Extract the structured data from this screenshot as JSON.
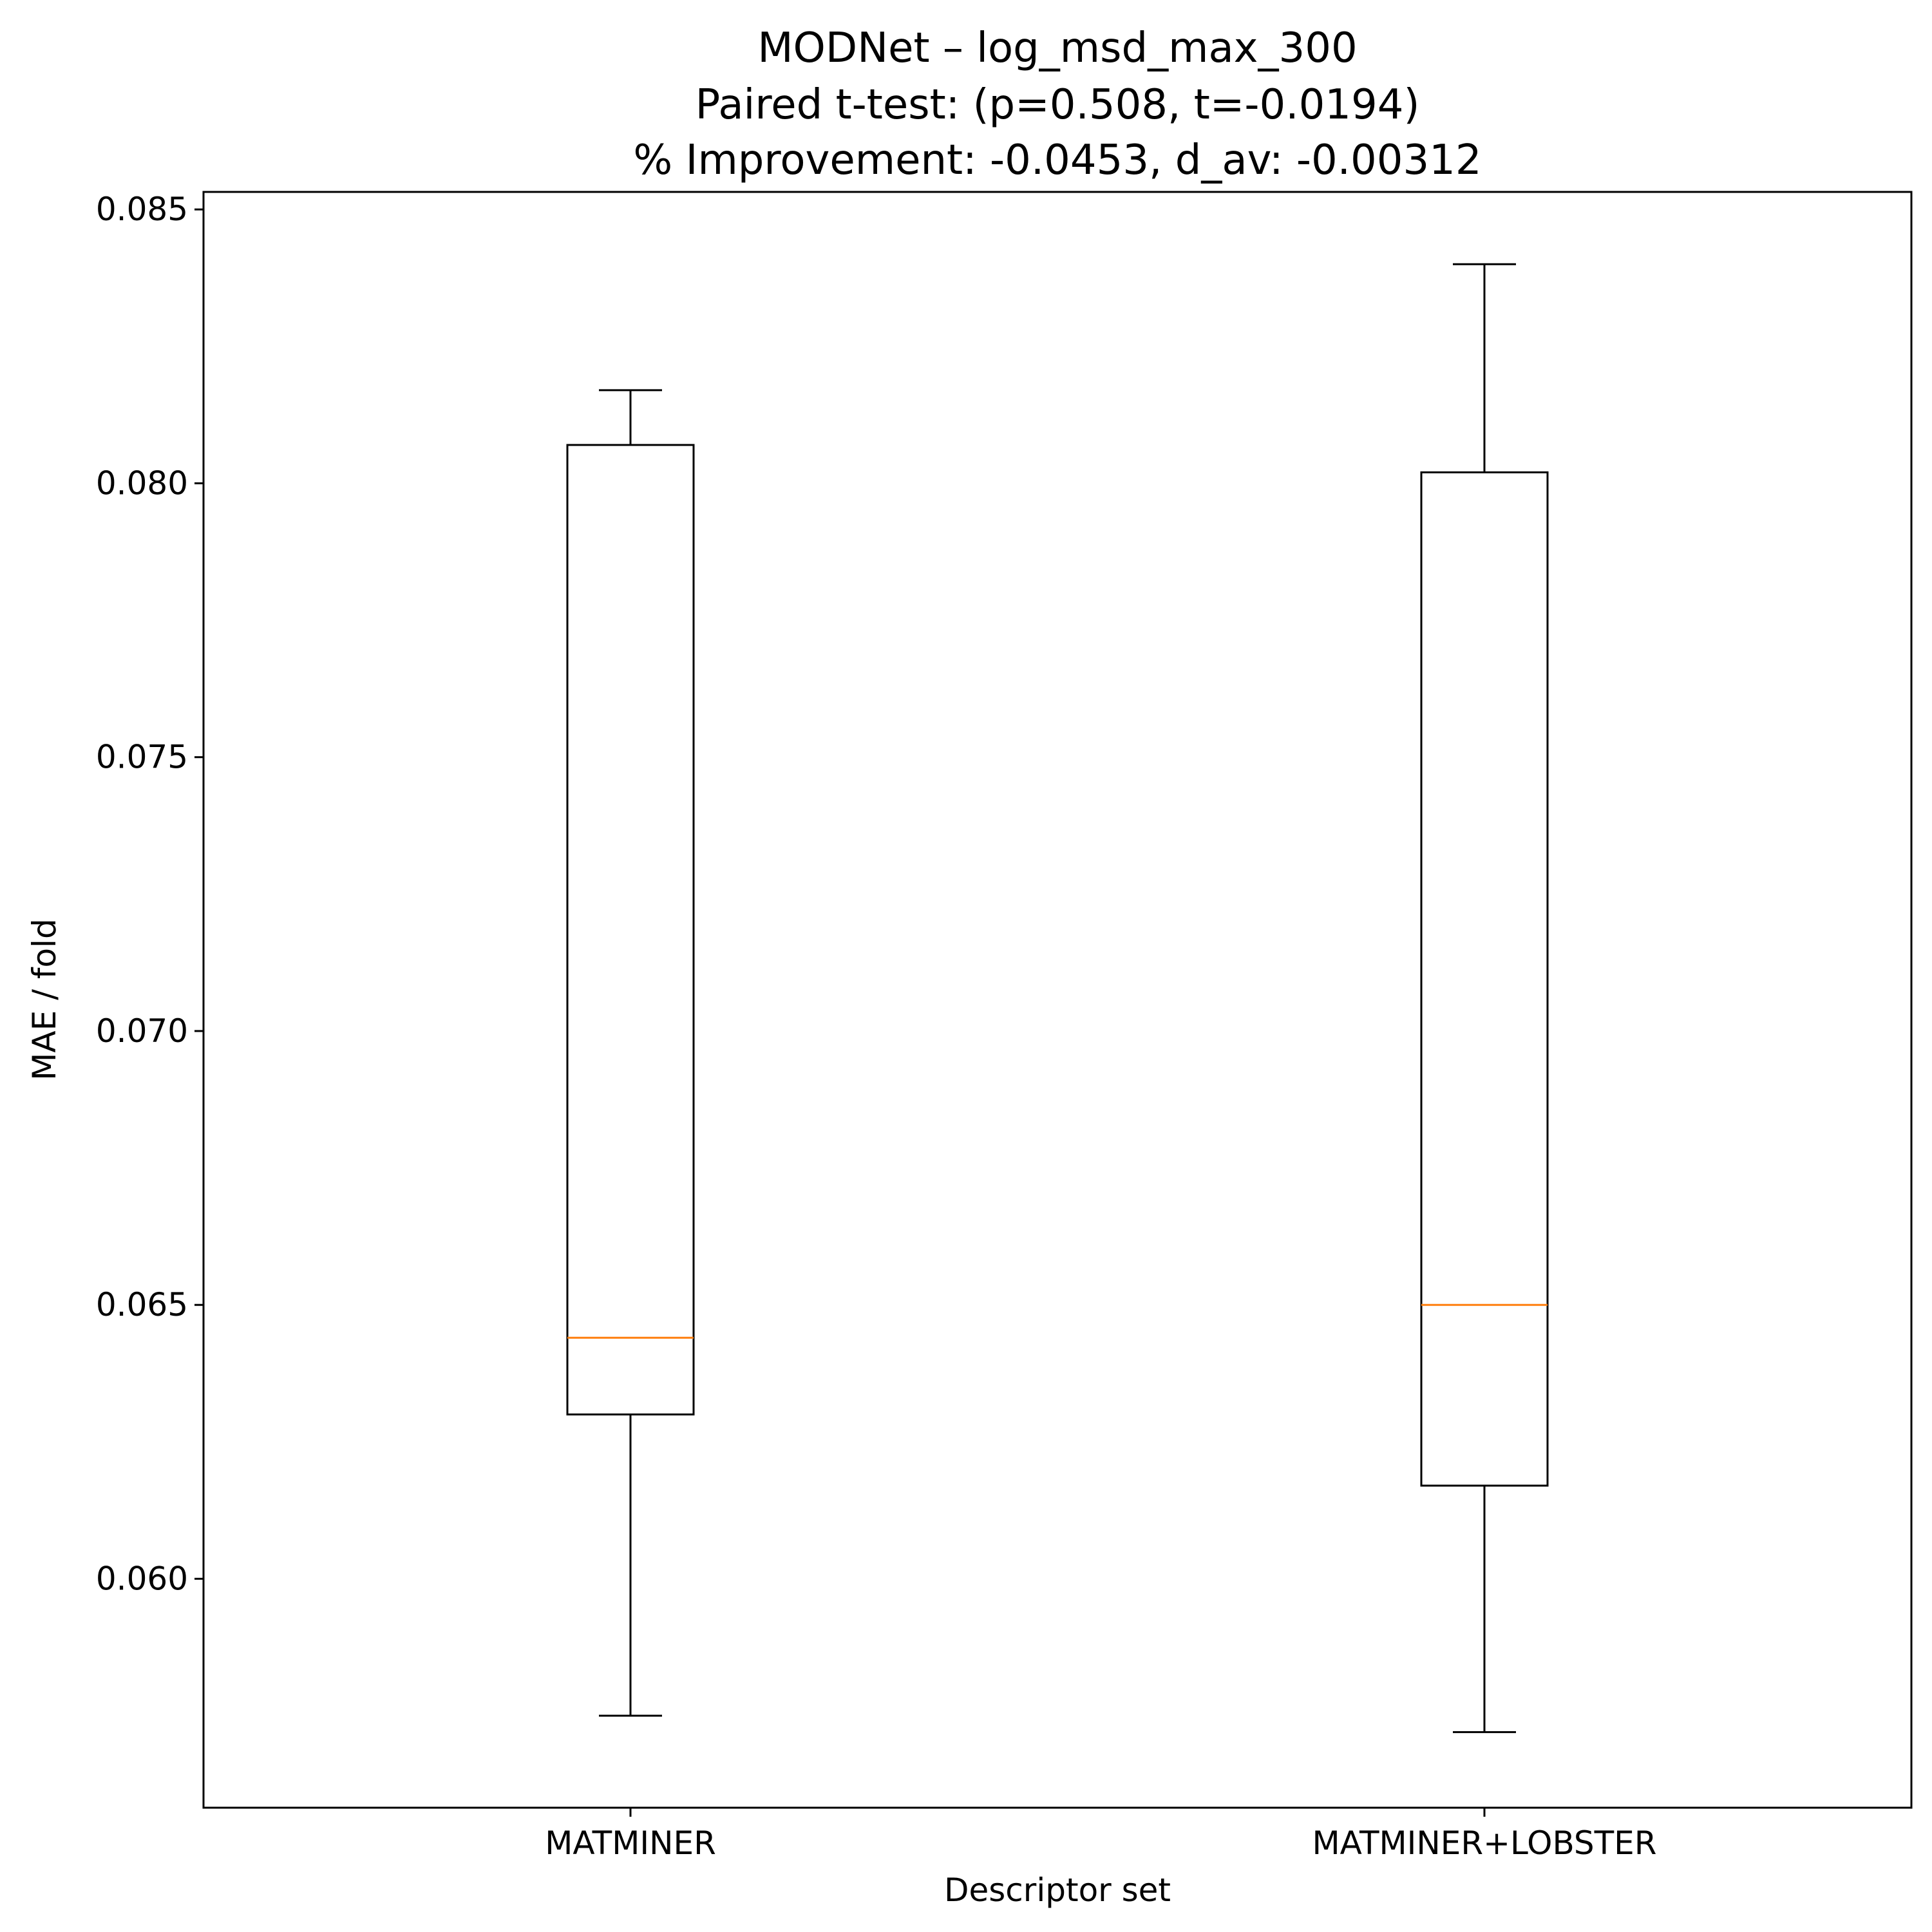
{
  "chart_data": {
    "type": "box",
    "title_lines": [
      "MODNet – log_msd_max_300",
      "Paired t-test: (p=0.508, t=-0.0194)",
      "% Improvement: -0.0453, d_av: -0.00312"
    ],
    "xlabel": "Descriptor set",
    "ylabel": "MAE / fold",
    "categories": [
      "MATMINER",
      "MATMINER+LOBSTER"
    ],
    "boxes": [
      {
        "whisker_low": 0.0575,
        "q1": 0.063,
        "median": 0.0644,
        "q3": 0.0807,
        "whisker_high": 0.0817
      },
      {
        "whisker_low": 0.0572,
        "q1": 0.0617,
        "median": 0.065,
        "q3": 0.0802,
        "whisker_high": 0.084
      }
    ],
    "yticks": [
      "0.060",
      "0.065",
      "0.070",
      "0.075",
      "0.080",
      "0.085"
    ],
    "ylim": [
      0.05582,
      0.08532
    ],
    "grid": false,
    "colors": {
      "box": "#000000",
      "median": "#ff7f0e"
    }
  }
}
